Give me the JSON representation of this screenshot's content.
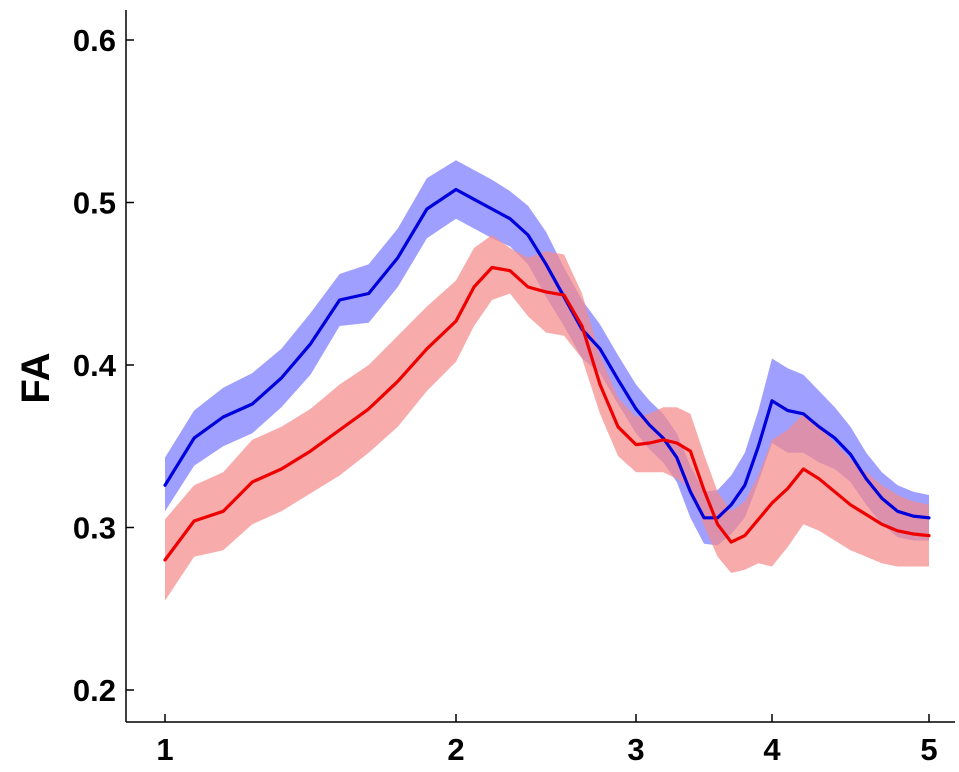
{
  "chart_data": {
    "type": "line",
    "title": "",
    "xlabel": "",
    "ylabel": "FA",
    "xlim": [
      0.9,
      5.1
    ],
    "ylim": [
      0.18,
      0.62
    ],
    "x_tick_values": [
      1,
      2,
      3,
      4,
      5
    ],
    "x_tick_labels": [
      "1",
      "2",
      "3",
      "4",
      "5"
    ],
    "y_tick_values": [
      0.2,
      0.3,
      0.4,
      0.5,
      0.6
    ],
    "y_tick_labels": [
      "0.2",
      "0.3",
      "0.4",
      "0.5",
      "0.6"
    ],
    "grid": false,
    "legend": "none",
    "x": [
      1,
      1.1,
      1.2,
      1.3,
      1.4,
      1.5,
      1.6,
      1.7,
      1.8,
      1.9,
      2.0,
      2.1,
      2.2,
      2.3,
      2.4,
      2.5,
      2.6,
      2.7,
      2.8,
      2.9,
      3.0,
      3.1,
      3.2,
      3.3,
      3.4,
      3.5,
      3.6,
      3.7,
      3.8,
      3.9,
      4.0,
      4.1,
      4.2,
      4.3,
      4.4,
      4.5,
      4.6,
      4.7,
      4.8,
      4.9,
      5.0
    ],
    "series": [
      {
        "color": "#0000dd",
        "band_color": "#7a7aff",
        "values": [
          0.326,
          0.355,
          0.368,
          0.376,
          0.392,
          0.413,
          0.44,
          0.444,
          0.466,
          0.496,
          0.508,
          0.502,
          0.496,
          0.49,
          0.48,
          0.462,
          0.442,
          0.422,
          0.41,
          0.391,
          0.373,
          0.363,
          0.355,
          0.343,
          0.322,
          0.306,
          0.306,
          0.314,
          0.326,
          0.35,
          0.378,
          0.372,
          0.37,
          0.362,
          0.355,
          0.345,
          0.33,
          0.318,
          0.31,
          0.307,
          0.306
        ],
        "upper": [
          0.343,
          0.372,
          0.386,
          0.395,
          0.41,
          0.432,
          0.456,
          0.462,
          0.484,
          0.515,
          0.526,
          0.52,
          0.514,
          0.507,
          0.498,
          0.482,
          0.46,
          0.44,
          0.425,
          0.406,
          0.388,
          0.378,
          0.37,
          0.358,
          0.338,
          0.322,
          0.323,
          0.332,
          0.346,
          0.372,
          0.404,
          0.398,
          0.394,
          0.384,
          0.374,
          0.362,
          0.346,
          0.334,
          0.326,
          0.322,
          0.32
        ],
        "lower": [
          0.31,
          0.338,
          0.35,
          0.358,
          0.374,
          0.394,
          0.424,
          0.426,
          0.448,
          0.478,
          0.49,
          0.484,
          0.478,
          0.473,
          0.462,
          0.442,
          0.424,
          0.404,
          0.395,
          0.376,
          0.358,
          0.348,
          0.34,
          0.328,
          0.306,
          0.29,
          0.289,
          0.296,
          0.306,
          0.328,
          0.352,
          0.346,
          0.346,
          0.34,
          0.336,
          0.328,
          0.314,
          0.302,
          0.294,
          0.292,
          0.292
        ]
      },
      {
        "color": "#ee0000",
        "band_color": "#f58a8a",
        "values": [
          0.28,
          0.304,
          0.31,
          0.328,
          0.336,
          0.347,
          0.36,
          0.373,
          0.39,
          0.41,
          0.427,
          0.448,
          0.46,
          0.458,
          0.448,
          0.445,
          0.443,
          0.424,
          0.388,
          0.362,
          0.351,
          0.352,
          0.354,
          0.352,
          0.347,
          0.323,
          0.302,
          0.291,
          0.295,
          0.305,
          0.315,
          0.324,
          0.336,
          0.33,
          0.322,
          0.314,
          0.308,
          0.302,
          0.298,
          0.296,
          0.295
        ],
        "upper": [
          0.305,
          0.326,
          0.334,
          0.354,
          0.362,
          0.373,
          0.388,
          0.4,
          0.418,
          0.436,
          0.452,
          0.472,
          0.48,
          0.472,
          0.466,
          0.47,
          0.468,
          0.444,
          0.406,
          0.38,
          0.368,
          0.37,
          0.374,
          0.374,
          0.37,
          0.345,
          0.322,
          0.31,
          0.316,
          0.332,
          0.354,
          0.36,
          0.37,
          0.362,
          0.352,
          0.342,
          0.334,
          0.326,
          0.32,
          0.316,
          0.314
        ],
        "lower": [
          0.255,
          0.282,
          0.286,
          0.302,
          0.31,
          0.321,
          0.332,
          0.346,
          0.362,
          0.384,
          0.402,
          0.424,
          0.44,
          0.444,
          0.43,
          0.42,
          0.418,
          0.404,
          0.37,
          0.344,
          0.334,
          0.334,
          0.334,
          0.33,
          0.324,
          0.301,
          0.282,
          0.272,
          0.274,
          0.278,
          0.276,
          0.288,
          0.302,
          0.298,
          0.292,
          0.286,
          0.282,
          0.278,
          0.276,
          0.276,
          0.276
        ]
      }
    ]
  }
}
